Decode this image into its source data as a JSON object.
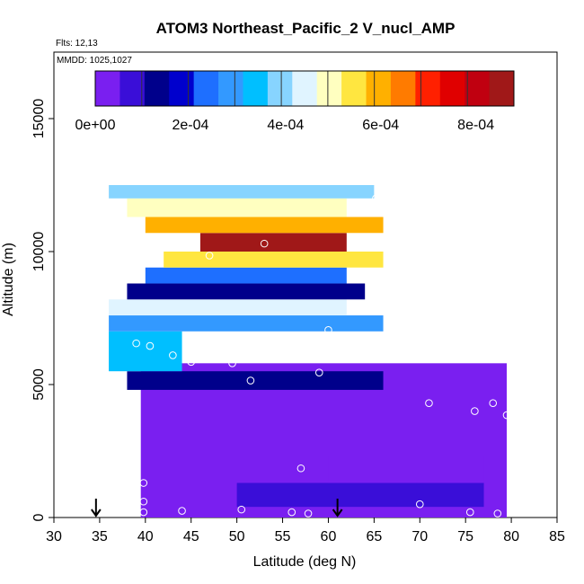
{
  "chart_data": {
    "type": "heatmap",
    "title": "ATOM3 Northeast_Pacific_2 V_nucl_AMP",
    "flights_label": "Flts: 12,13",
    "dates_label": "MMDD: 1025,1027",
    "xlabel": "Latitude (deg N)",
    "ylabel": "Altitude (m)",
    "xlim": [
      30,
      85
    ],
    "ylim": [
      0,
      17500
    ],
    "x_ticks": [
      "30",
      "35",
      "40",
      "45",
      "50",
      "55",
      "60",
      "65",
      "70",
      "75",
      "80",
      "85"
    ],
    "y_ticks": [
      "0",
      "5000",
      "10000",
      "15000"
    ],
    "colorbar": {
      "min": 0,
      "max": 0.00088,
      "tick_values": [
        0,
        0.0002,
        0.0004,
        0.0006,
        0.0008
      ],
      "tick_labels": [
        "0e+00",
        "2e-04",
        "4e-04",
        "6e-04",
        "8e-04"
      ],
      "colors": [
        "#7a1ff0",
        "#3a0ed8",
        "#00008b",
        "#0000cd",
        "#1e6fff",
        "#3399ff",
        "#00bfff",
        "#87d4ff",
        "#e0f4ff",
        "#ffffc0",
        "#ffe640",
        "#ffb000",
        "#ff7b00",
        "#ff2000",
        "#e00000",
        "#c00010",
        "#a01818"
      ]
    },
    "grid": false,
    "legend": "colorbar-top-inside",
    "latitude_range": [
      35.5,
      79.5
    ],
    "altitude_range": [
      0,
      12500
    ],
    "field_cells": [
      {
        "lat_from": 39.5,
        "lat_to": 79.5,
        "alt_from": 0,
        "alt_to": 5800,
        "value": 0.0
      },
      {
        "lat_from": 50,
        "lat_to": 77,
        "alt_from": 400,
        "alt_to": 1300,
        "value": 7e-05
      },
      {
        "lat_from": 60,
        "lat_to": 77,
        "alt_from": 1300,
        "alt_to": 2300,
        "value": 4e-05
      },
      {
        "lat_from": 38,
        "lat_to": 66,
        "alt_from": 4800,
        "alt_to": 5500,
        "value": 0.00012
      },
      {
        "lat_from": 36,
        "lat_to": 44,
        "alt_from": 5500,
        "alt_to": 7000,
        "value": 0.00035
      },
      {
        "lat_from": 36,
        "lat_to": 66,
        "alt_from": 7000,
        "alt_to": 7600,
        "value": 0.0003
      },
      {
        "lat_from": 36,
        "lat_to": 62,
        "alt_from": 7600,
        "alt_to": 8200,
        "value": 0.00045
      },
      {
        "lat_from": 38,
        "lat_to": 64,
        "alt_from": 8200,
        "alt_to": 8800,
        "value": 0.00012
      },
      {
        "lat_from": 40,
        "lat_to": 62,
        "alt_from": 8800,
        "alt_to": 9400,
        "value": 0.00025
      },
      {
        "lat_from": 42,
        "lat_to": 66,
        "alt_from": 9400,
        "alt_to": 10000,
        "value": 0.00055
      },
      {
        "lat_from": 46,
        "lat_to": 62,
        "alt_from": 10000,
        "alt_to": 10700,
        "value": 0.00085
      },
      {
        "lat_from": 40,
        "lat_to": 66,
        "alt_from": 10700,
        "alt_to": 11300,
        "value": 0.00062
      },
      {
        "lat_from": 38,
        "lat_to": 62,
        "alt_from": 11300,
        "alt_to": 12000,
        "value": 0.00048
      },
      {
        "lat_from": 36,
        "lat_to": 65,
        "alt_from": 12000,
        "alt_to": 12500,
        "value": 0.00038
      }
    ],
    "sample_points": [
      {
        "lat": 65.2,
        "alt": 12000
      },
      {
        "lat": 72.0,
        "alt": 10300
      },
      {
        "lat": 53.0,
        "alt": 10300
      },
      {
        "lat": 38.5,
        "alt": 9900
      },
      {
        "lat": 41.5,
        "alt": 9900
      },
      {
        "lat": 47.0,
        "alt": 9850
      },
      {
        "lat": 77.0,
        "alt": 7500
      },
      {
        "lat": 69.0,
        "alt": 7150
      },
      {
        "lat": 60.0,
        "alt": 7050
      },
      {
        "lat": 39.0,
        "alt": 6550
      },
      {
        "lat": 40.5,
        "alt": 6450
      },
      {
        "lat": 55.5,
        "alt": 6500
      },
      {
        "lat": 74.0,
        "alt": 6250
      },
      {
        "lat": 43.0,
        "alt": 6100
      },
      {
        "lat": 45.0,
        "alt": 5850
      },
      {
        "lat": 49.5,
        "alt": 5800
      },
      {
        "lat": 59.0,
        "alt": 5450
      },
      {
        "lat": 51.5,
        "alt": 5150
      },
      {
        "lat": 38.2,
        "alt": 4600
      },
      {
        "lat": 71.0,
        "alt": 4300
      },
      {
        "lat": 78.0,
        "alt": 4300
      },
      {
        "lat": 76.0,
        "alt": 4000
      },
      {
        "lat": 79.5,
        "alt": 3850
      },
      {
        "lat": 57.0,
        "alt": 1850
      },
      {
        "lat": 39.8,
        "alt": 1300
      },
      {
        "lat": 39.8,
        "alt": 600
      },
      {
        "lat": 70.0,
        "alt": 500
      },
      {
        "lat": 39.8,
        "alt": 200
      },
      {
        "lat": 44.0,
        "alt": 250
      },
      {
        "lat": 50.5,
        "alt": 300
      },
      {
        "lat": 56.0,
        "alt": 200
      },
      {
        "lat": 57.8,
        "alt": 150
      },
      {
        "lat": 75.5,
        "alt": 200
      },
      {
        "lat": 78.5,
        "alt": 150
      }
    ],
    "arrow_markers": [
      {
        "lat": 34.6
      },
      {
        "lat": 61.0
      }
    ]
  }
}
